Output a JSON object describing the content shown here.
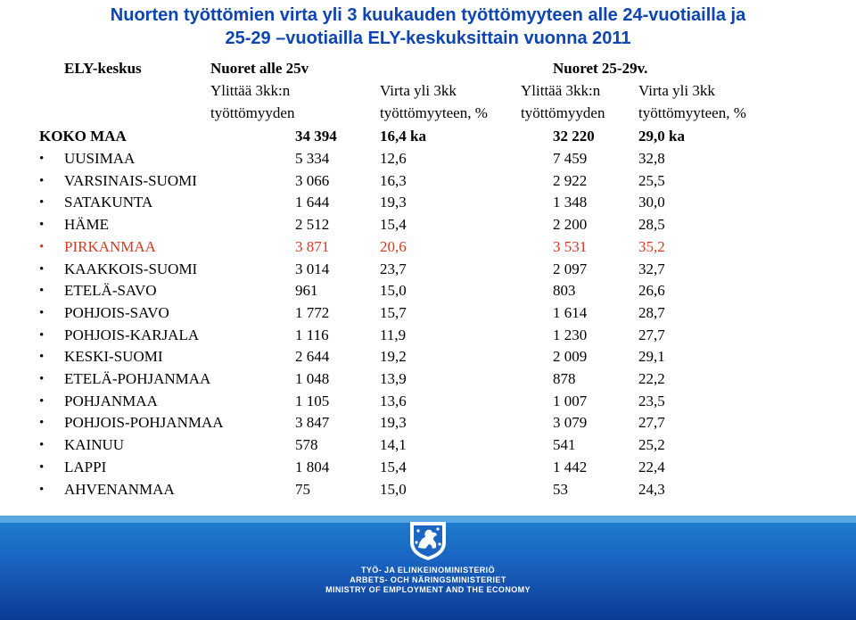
{
  "title": {
    "line1": "Nuorten työttömien virta yli 3 kuukauden työttömyyteen alle 24-vuotiailla ja",
    "line2": "25-29 –vuotiailla ELY-keskuksittain vuonna 2011"
  },
  "header": {
    "ely": "ELY-keskus",
    "group1": "Nuoret alle 25v",
    "group2": "Nuoret 25-29v.",
    "col1_line1": "Ylittää 3kk:n",
    "col1_line2": "työttömyyden",
    "col2_line1": "Virta yli 3kk",
    "col2_line2": "työttömyyteen, %",
    "col3_line1": "Ylittää 3kk:n",
    "col3_line2": "työttömyyden",
    "col4_line1": "Virta yli 3kk",
    "col4_line2": "työttömyyteen, %"
  },
  "total": {
    "label": "KOKO MAA",
    "c1": "34 394",
    "c2": "16,4  ka",
    "c3": "32 220",
    "c4": "29,0  ka"
  },
  "bullet_char": "•",
  "rows": [
    {
      "label": "UUSIMAA",
      "c1": "5 334",
      "c2": "12,6",
      "c3": "7 459",
      "c4": "32,8",
      "highlight": false
    },
    {
      "label": "VARSINAIS-SUOMI",
      "c1": "3 066",
      "c2": "16,3",
      "c3": "2 922",
      "c4": "25,5",
      "highlight": false
    },
    {
      "label": "SATAKUNTA",
      "c1": "1 644",
      "c2": "19,3",
      "c3": "1 348",
      "c4": "30,0",
      "highlight": false
    },
    {
      "label": "HÄME",
      "c1": "2 512",
      "c2": "15,4",
      "c3": "2 200",
      "c4": "28,5",
      "highlight": false
    },
    {
      "label": "PIRKANMAA",
      "c1": "3 871",
      "c2": "20,6",
      "c3": "3 531",
      "c4": "35,2",
      "highlight": true
    },
    {
      "label": "KAAKKOIS-SUOMI",
      "c1": "3 014",
      "c2": "23,7",
      "c3": "2 097",
      "c4": "32,7",
      "highlight": false
    },
    {
      "label": "ETELÄ-SAVO",
      "c1": "961",
      "c2": "15,0",
      "c3": "803",
      "c4": "26,6",
      "highlight": false
    },
    {
      "label": "POHJOIS-SAVO",
      "c1": "1 772",
      "c2": "15,7",
      "c3": "1 614",
      "c4": "28,7",
      "highlight": false
    },
    {
      "label": "POHJOIS-KARJALA",
      "c1": "1 116",
      "c2": "11,9",
      "c3": "1 230",
      "c4": "27,7",
      "highlight": false
    },
    {
      "label": "KESKI-SUOMI",
      "c1": "2 644",
      "c2": "19,2",
      "c3": "2 009",
      "c4": "29,1",
      "highlight": false
    },
    {
      "label": "ETELÄ-POHJANMAA",
      "c1": "1 048",
      "c2": "13,9",
      "c3": "878",
      "c4": "22,2",
      "highlight": false
    },
    {
      "label": "POHJANMAA",
      "c1": "1 105",
      "c2": "13,6",
      "c3": "1 007",
      "c4": "23,5",
      "highlight": false
    },
    {
      "label": "POHJOIS-POHJANMAA",
      "c1": "3 847",
      "c2": "19,3",
      "c3": "3 079",
      "c4": "27,7",
      "highlight": false
    },
    {
      "label": "KAINUU",
      "c1": "578",
      "c2": "14,1",
      "c3": "541",
      "c4": "25,2",
      "highlight": false
    },
    {
      "label": "LAPPI",
      "c1": "1 804",
      "c2": "15,4",
      "c3": "1 442",
      "c4": "22,4",
      "highlight": false
    },
    {
      "label": "AHVENANMAA",
      "c1": "75",
      "c2": "15,0",
      "c3": "53",
      "c4": "24,3",
      "highlight": false
    }
  ],
  "colors": {
    "title": "#0d45b3",
    "highlight": "#d9381e",
    "footer": "#1a66c2"
  },
  "footer": {
    "logo_icon": "finnish-lion-coat-of-arms-icon",
    "line1": "TYÖ- JA ELINKEINOMINISTERIÖ",
    "line2": "ARBETS- OCH NÄRINGSMINISTERIET",
    "line3": "MINISTRY OF EMPLOYMENT AND THE ECONOMY"
  }
}
